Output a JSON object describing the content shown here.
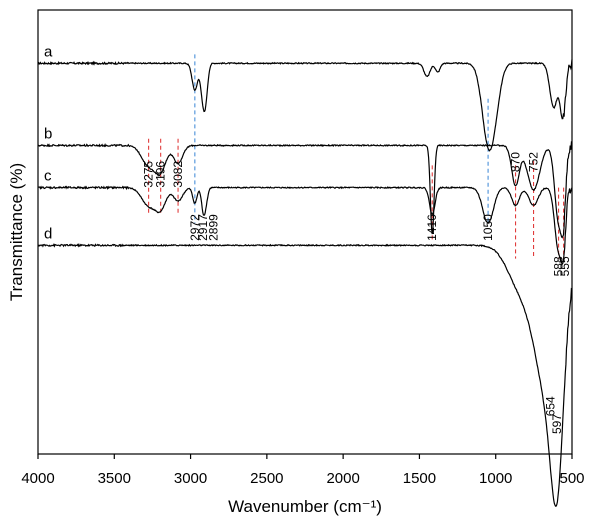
{
  "chart_data": {
    "type": "line",
    "xlabel": "Wavenumber (cm⁻¹)",
    "ylabel": "Transmittance (%)",
    "xlim": [
      4000,
      500
    ],
    "x_reversed": true,
    "x_ticks": [
      4000,
      3500,
      3000,
      2500,
      2000,
      1500,
      1000,
      500
    ],
    "y_ticks_shown": false,
    "grid": false,
    "colors": {
      "curve": "#000000",
      "blue_guides": "#4a90d9",
      "red_guides": "#e03c3c"
    },
    "series": [
      {
        "name": "a",
        "baseline": 0.88,
        "bands": [
          [
            2972,
            0.06,
            18
          ],
          [
            2917,
            0.08,
            16
          ],
          [
            2899,
            0.05,
            14
          ],
          [
            1450,
            0.03,
            20
          ],
          [
            1380,
            0.02,
            15
          ],
          [
            1050,
            0.17,
            40
          ],
          [
            1000,
            0.06,
            35
          ],
          [
            620,
            0.1,
            25
          ],
          [
            560,
            0.12,
            18
          ]
        ]
      },
      {
        "name": "b",
        "baseline": 0.695,
        "bands": [
          [
            3275,
            0.045,
            45
          ],
          [
            3196,
            0.055,
            35
          ],
          [
            3082,
            0.04,
            30
          ],
          [
            1416,
            0.2,
            12
          ],
          [
            870,
            0.09,
            25
          ],
          [
            752,
            0.1,
            40
          ],
          [
            588,
            0.17,
            25
          ],
          [
            555,
            0.12,
            15
          ]
        ]
      },
      {
        "name": "c",
        "baseline": 0.6,
        "bands": [
          [
            3275,
            0.04,
            45
          ],
          [
            3196,
            0.045,
            35
          ],
          [
            3082,
            0.03,
            30
          ],
          [
            2972,
            0.035,
            14
          ],
          [
            2917,
            0.05,
            12
          ],
          [
            2899,
            0.03,
            12
          ],
          [
            1416,
            0.06,
            18
          ],
          [
            1050,
            0.08,
            35
          ],
          [
            870,
            0.04,
            25
          ],
          [
            752,
            0.04,
            30
          ],
          [
            588,
            0.14,
            25
          ],
          [
            555,
            0.1,
            15
          ]
        ]
      },
      {
        "name": "d",
        "baseline": 0.47,
        "bands": [
          [
            654,
            0.34,
            90
          ],
          [
            597,
            0.3,
            40
          ],
          [
            850,
            0.08,
            80
          ]
        ]
      }
    ],
    "peak_labels": [
      {
        "text": "3275",
        "x": 3275,
        "y": 0.6
      },
      {
        "text": "3196",
        "x": 3196,
        "y": 0.6
      },
      {
        "text": "3082",
        "x": 3082,
        "y": 0.6
      },
      {
        "text": "870",
        "x": 870,
        "y": 0.635
      },
      {
        "text": "752",
        "x": 752,
        "y": 0.635
      },
      {
        "text": "2972",
        "x": 2972,
        "y": 0.48
      },
      {
        "text": "2917",
        "x": 2917,
        "y": 0.48
      },
      {
        "text": "2899",
        "x": 2850,
        "y": 0.48
      },
      {
        "text": "1416",
        "x": 1416,
        "y": 0.48
      },
      {
        "text": "1050",
        "x": 1050,
        "y": 0.48
      },
      {
        "text": "588",
        "x": 588,
        "y": 0.4
      },
      {
        "text": "555",
        "x": 545,
        "y": 0.4
      },
      {
        "text": "654",
        "x": 640,
        "y": 0.085
      },
      {
        "text": "597",
        "x": 597,
        "y": 0.045
      }
    ],
    "guide_lines": [
      {
        "color": "blue",
        "x": 2972,
        "y_from": 0.9,
        "y_to": 0.52
      },
      {
        "color": "blue",
        "x": 1050,
        "y_from": 0.8,
        "y_to": 0.52
      },
      {
        "color": "red",
        "x": 3275,
        "y_from": 0.71,
        "y_to": 0.54
      },
      {
        "color": "red",
        "x": 3196,
        "y_from": 0.71,
        "y_to": 0.54
      },
      {
        "color": "red",
        "x": 3082,
        "y_from": 0.71,
        "y_to": 0.54
      },
      {
        "color": "red",
        "x": 1416,
        "y_from": 0.65,
        "y_to": 0.48
      },
      {
        "color": "red",
        "x": 870,
        "y_from": 0.65,
        "y_to": 0.44
      },
      {
        "color": "red",
        "x": 752,
        "y_from": 0.66,
        "y_to": 0.44
      },
      {
        "color": "red",
        "x": 588,
        "y_from": 0.6,
        "y_to": 0.44
      },
      {
        "color": "red",
        "x": 555,
        "y_from": 0.6,
        "y_to": 0.44
      }
    ]
  }
}
